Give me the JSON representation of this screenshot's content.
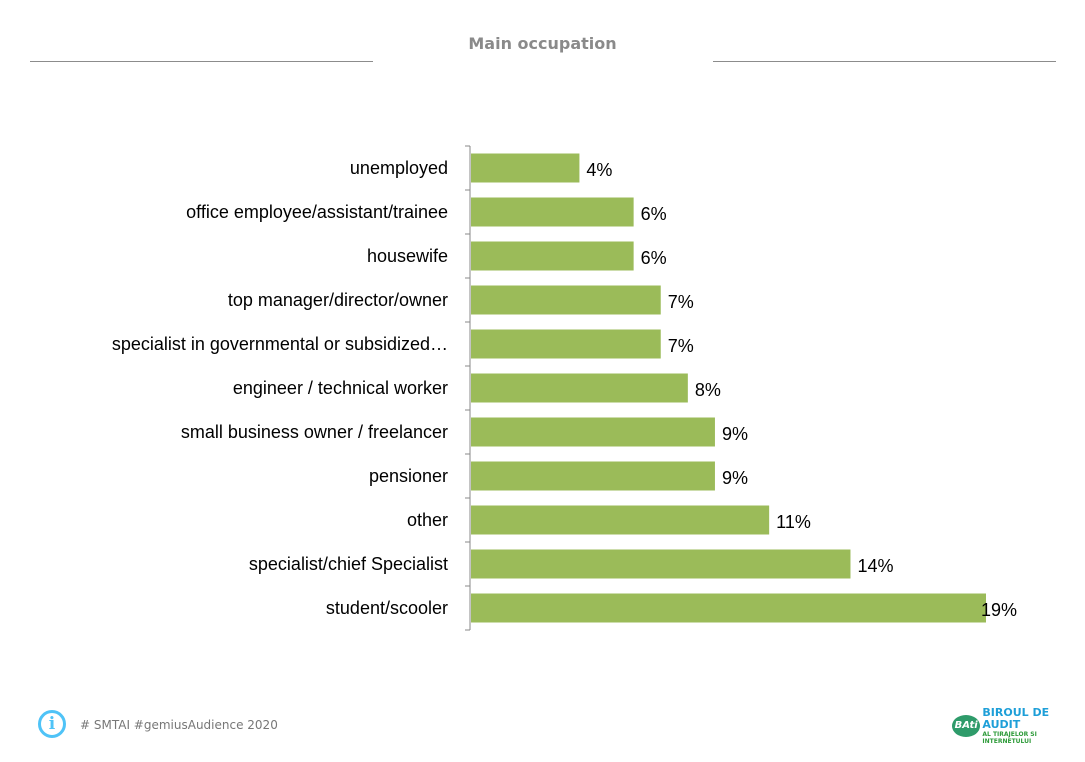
{
  "chart_data": {
    "type": "bar",
    "orientation": "horizontal",
    "title": "Main occupation",
    "categories": [
      "unemployed",
      "office employee/assistant/trainee",
      "housewife",
      "top manager/director/owner",
      "specialist in governmental or subsidized…",
      "engineer / technical worker",
      "small business owner / freelancer",
      "pensioner",
      "other",
      "specialist/chief Specialist",
      "student/scooler"
    ],
    "values": [
      4,
      6,
      6,
      7,
      7,
      8,
      9,
      9,
      11,
      14,
      19
    ],
    "labels": [
      "4%",
      "6%",
      "6%",
      "7%",
      "7%",
      "8%",
      "9%",
      "9%",
      "11%",
      "14%",
      "19%"
    ],
    "xlim": [
      0,
      19
    ],
    "grid": false,
    "bar_color": "#9bbb59"
  },
  "footer": {
    "source": "# SMTAI #gemiusAudience 2020",
    "info_icon": "i",
    "logo_mark": "BAti",
    "logo_line1": "BIROUL DE AUDIT",
    "logo_line2": "AL TIRAJELOR SI INTERNETULUI"
  }
}
